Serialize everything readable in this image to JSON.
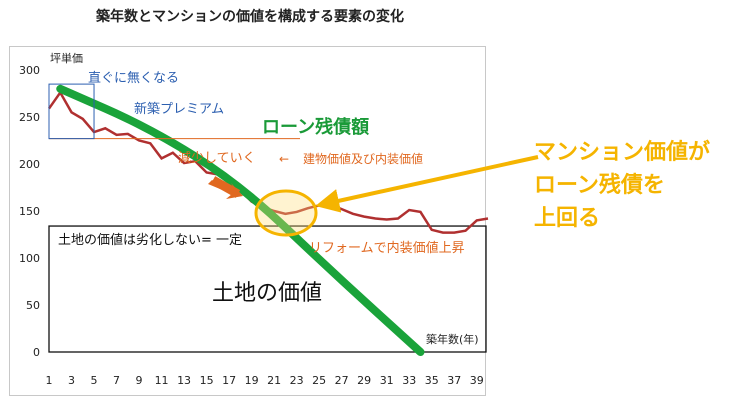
{
  "title": "築年数とマンションの価値を構成する要素の変化",
  "chart_data": {
    "type": "line",
    "ylabel": "坪単価",
    "xlabel": "築年数(年)",
    "ylim": [
      0,
      300
    ],
    "yticks": [
      0,
      50,
      100,
      150,
      200,
      250,
      300
    ],
    "xlim": [
      1,
      40
    ],
    "xticks": [
      1,
      3,
      5,
      7,
      9,
      11,
      13,
      15,
      17,
      19,
      21,
      23,
      25,
      27,
      29,
      31,
      33,
      35,
      37,
      39
    ],
    "series": [
      {
        "name": "",
        "color": "#b03030",
        "x": [
          1,
          2,
          3,
          4,
          5,
          6,
          7,
          8,
          9,
          10,
          11,
          12,
          13,
          14,
          15,
          16,
          17,
          18,
          19,
          20,
          21,
          22,
          23,
          24,
          25,
          26,
          27,
          28,
          29,
          30,
          31,
          32,
          33,
          34,
          35,
          36,
          37,
          38,
          39,
          40
        ],
        "values": [
          259,
          276,
          255,
          248,
          234,
          238,
          231,
          232,
          225,
          222,
          206,
          212,
          201,
          203,
          191,
          189,
          181,
          172,
          160,
          154,
          150,
          147,
          149,
          153,
          156,
          157,
          152,
          147,
          144,
          142,
          141,
          142,
          151,
          149,
          130,
          127,
          127,
          129,
          140,
          142
        ]
      },
      {
        "name": "ローン残債額",
        "color": "#1aa33a",
        "x": [
          2,
          10,
          18,
          26,
          34
        ],
        "values": [
          280,
          238,
          178,
          87,
          0
        ]
      }
    ],
    "land_value": 134,
    "premium_line": 227,
    "annotations": {
      "premium_drop": "直ぐに無くなる",
      "new_premium": "新築プレミアム",
      "loan_balance": "ローン残債額",
      "decreasing": "減少していく",
      "building_value": "建物価値及び内装価値",
      "land_constant": "土地の価値は劣化しない= 一定",
      "reform": "リフォームで内装価値上昇",
      "land_value_label": "土地の価値",
      "callout": [
        "マンション価値が",
        "ローン残債を",
        "上回る"
      ],
      "arrow_glyph": "←"
    }
  },
  "colors": {
    "price_line": "#b03030",
    "loan_line": "#1aa33a",
    "callout": "#f5b400",
    "blue_text": "#2c5fb0",
    "orange_text": "#e06820",
    "green_text": "#1a9a38"
  }
}
